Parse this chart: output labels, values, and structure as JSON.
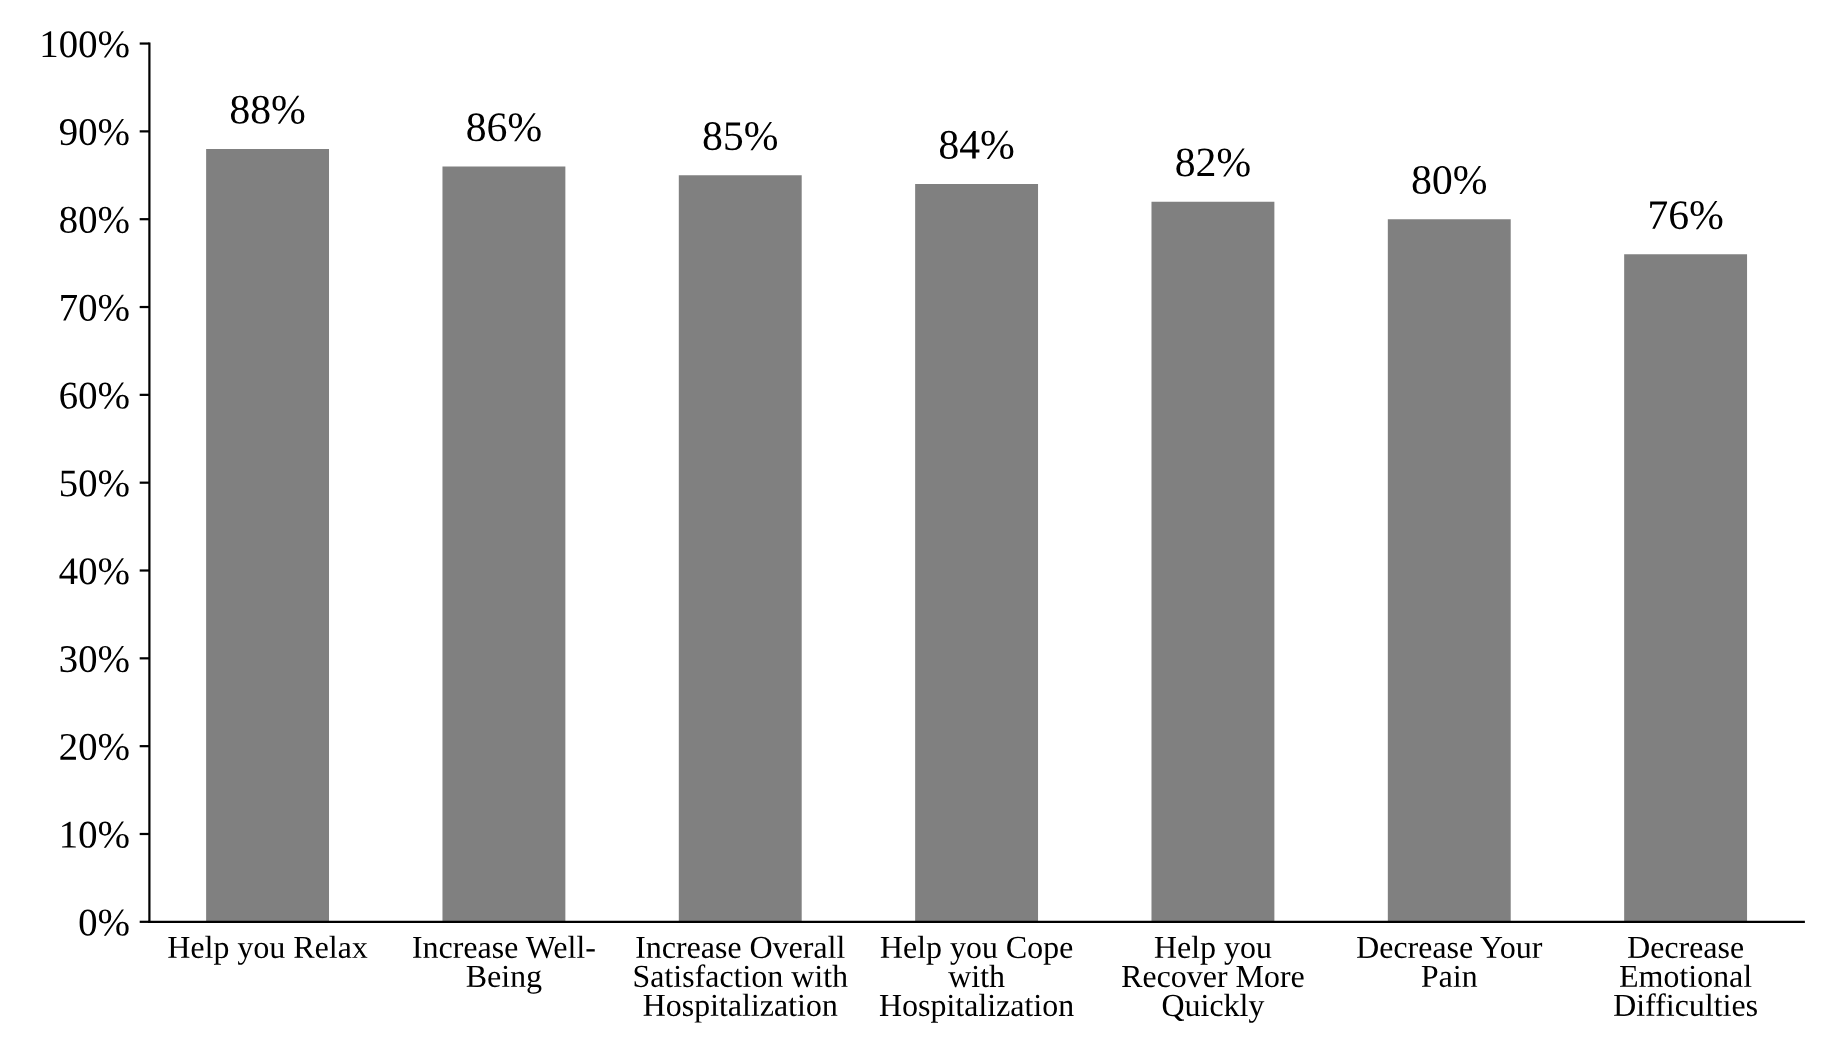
{
  "chart_data": {
    "type": "bar",
    "categories": [
      "Help you Relax",
      "Increase Well-\nBeing",
      "Increase Overall\nSatisfaction with\nHospitalization",
      "Help you Cope\nwith\nHospitalization",
      "Help you\nRecover More\nQuickly",
      "Decrease Your\nPain",
      "Decrease\nEmotional\nDifficulties"
    ],
    "values": [
      88,
      86,
      85,
      84,
      82,
      80,
      76
    ],
    "value_labels": [
      "88%",
      "86%",
      "85%",
      "84%",
      "82%",
      "80%",
      "76%"
    ],
    "color": "#808080",
    "ylim": [
      0,
      100
    ],
    "yticks": [
      {
        "value": 0,
        "label": "0%"
      },
      {
        "value": 10,
        "label": "10%"
      },
      {
        "value": 20,
        "label": "20%"
      },
      {
        "value": 30,
        "label": "30%"
      },
      {
        "value": 40,
        "label": "40%"
      },
      {
        "value": 50,
        "label": "50%"
      },
      {
        "value": 60,
        "label": "60%"
      },
      {
        "value": 70,
        "label": "70%"
      },
      {
        "value": 80,
        "label": "80%"
      },
      {
        "value": 90,
        "label": "90%"
      },
      {
        "value": 100,
        "label": "100%"
      }
    ],
    "grid": false
  }
}
